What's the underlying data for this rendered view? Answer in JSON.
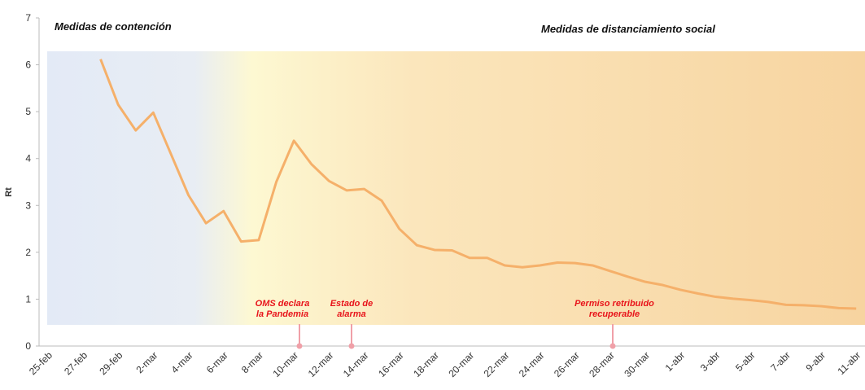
{
  "chart_data": {
    "type": "line",
    "y_label": "Rt",
    "sections": [
      "Medidas de contención",
      "Medidas de distanciamiento social"
    ],
    "annotations": [
      [
        "OMS declara",
        "la Pandemia"
      ],
      [
        "Estado de",
        "alarma"
      ],
      [
        "Permiso retribuido",
        "recuperable"
      ]
    ],
    "categories": [
      "25-feb",
      null,
      "27-feb",
      null,
      "29-feb",
      null,
      "2-mar",
      null,
      "4-mar",
      null,
      "6-mar",
      null,
      "8-mar",
      null,
      "10-mar",
      null,
      "12-mar",
      null,
      "14-mar",
      null,
      "16-mar",
      null,
      "18-mar",
      null,
      "20-mar",
      null,
      "22-mar",
      null,
      "24-mar",
      null,
      "26-mar",
      null,
      "28-mar",
      null,
      "30-mar",
      null,
      "1-abr",
      null,
      "3-abr",
      null,
      "5-abr",
      null,
      "7-abr",
      null,
      "9-abr",
      null,
      "11-abr"
    ],
    "series": [
      {
        "color": "#f5b06a",
        "values": [
          null,
          null,
          null,
          6.12,
          5.15,
          4.6,
          4.98,
          4.1,
          3.22,
          2.62,
          2.88,
          2.23,
          2.26,
          3.5,
          4.38,
          3.88,
          3.52,
          3.32,
          3.35,
          3.1,
          2.5,
          2.15,
          2.05,
          2.04,
          1.88,
          1.88,
          1.72,
          1.68,
          1.72,
          1.78,
          1.77,
          1.72,
          1.6,
          1.48,
          1.37,
          1.3,
          1.2,
          1.12,
          1.05,
          1.01,
          0.98,
          0.94,
          0.88,
          0.87,
          0.85,
          0.81,
          0.8
        ]
      }
    ],
    "reference_line": 1,
    "ylim": [
      0,
      7
    ],
    "yticks": [
      0,
      1,
      2,
      3,
      4,
      5,
      6,
      7
    ]
  }
}
